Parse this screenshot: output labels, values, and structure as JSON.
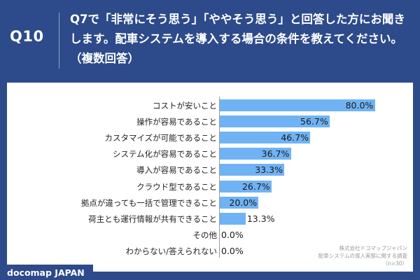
{
  "header": {
    "question_number": "Q10",
    "question_text": "Q7で「非常にそう思う」「ややそう思う」と回答した方にお聞きします。配車システムを導入する場合の条件を教えてください。（複数回答）"
  },
  "chart_data": {
    "type": "bar",
    "orientation": "horizontal",
    "categories": [
      "コストが安いこと",
      "操作が容易であること",
      "カスタマイズが可能であること",
      "システム化が容易であること",
      "導入が容易であること",
      "クラウド型であること",
      "拠点が違っても一括で管理できること",
      "荷主とも運行情報が共有できること",
      "その他",
      "わからない/答えられない"
    ],
    "values": [
      80.0,
      56.7,
      46.7,
      36.7,
      33.3,
      26.7,
      20.0,
      13.3,
      0.0,
      0.0
    ],
    "value_labels": [
      "80.0%",
      "56.7%",
      "46.7%",
      "36.7%",
      "33.3%",
      "26.7%",
      "20.0%",
      "13.3%",
      "0.0%",
      "0.0%"
    ],
    "xlim": [
      0,
      100
    ],
    "unit": "%",
    "bar_color": "#70b3f5"
  },
  "source": {
    "line1": "株式会社ドコマップジャパン",
    "line2": "配車システムの導入実態に関する調査",
    "line3": "（n=30）"
  },
  "brand": {
    "name": "docomap JAPAN"
  }
}
